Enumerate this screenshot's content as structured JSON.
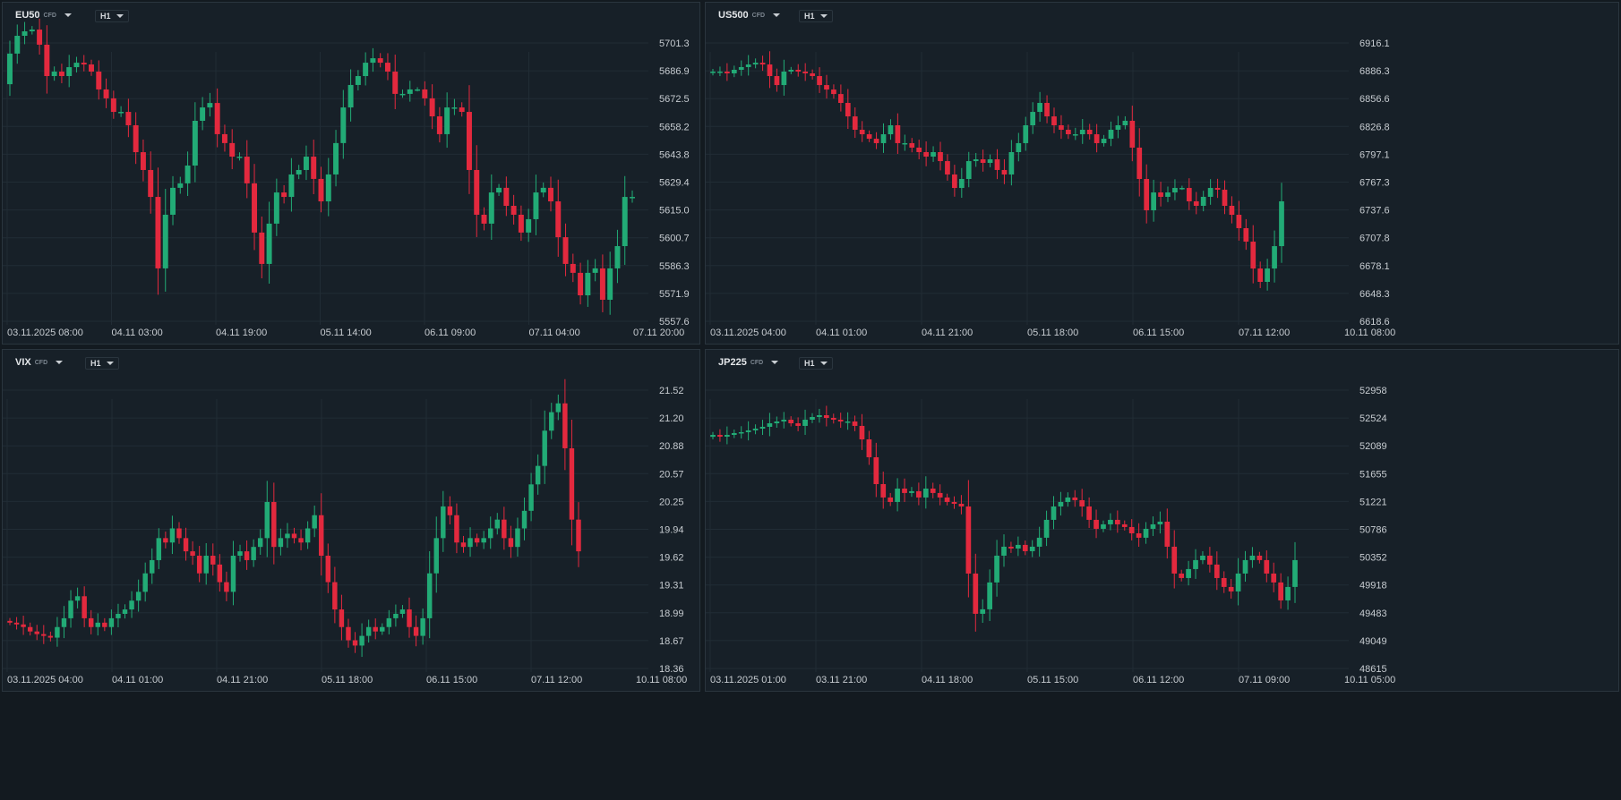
{
  "colors": {
    "up": "#22ab76",
    "down": "#e3293e",
    "grid": "#212c35",
    "bg": "#172028"
  },
  "charts": [
    {
      "id": "eu50",
      "symbol": "EU50",
      "instrument_type": "CFD",
      "timeframe": "H1",
      "price_ticks": [
        "5701.3",
        "5686.9",
        "5672.5",
        "5658.2",
        "5643.8",
        "5629.4",
        "5615.0",
        "5600.7",
        "5586.3",
        "5571.9",
        "5557.6"
      ],
      "time_labels": [
        "03.11.2025  08:00",
        "04.11  03:00",
        "04.11  19:00",
        "05.11  14:00",
        "06.11  09:00",
        "07.11  04:00",
        "07.11  20:00"
      ],
      "open": 5680.0,
      "closes": [
        5695.8,
        5705.0,
        5707.3,
        5708.2,
        5700.4,
        5684.2,
        5686.5,
        5684.2,
        5688.8,
        5691.1,
        5690.2,
        5686.5,
        5677.3,
        5672.7,
        5665.7,
        5665.7,
        5658.8,
        5644.9,
        5635.7,
        5621.8,
        5584.9,
        5612.6,
        5626.5,
        5628.8,
        5638.0,
        5661.1,
        5668.0,
        5670.3,
        5654.2,
        5649.6,
        5642.6,
        5642.6,
        5628.8,
        5603.4,
        5587.2,
        5608.0,
        5624.1,
        5621.8,
        5633.4,
        5635.7,
        5642.6,
        5631.1,
        5619.5,
        5633.4,
        5649.6,
        5668.0,
        5679.6,
        5684.2,
        5691.1,
        5693.4,
        5691.1,
        5686.5,
        5675.0,
        5675.0,
        5677.3,
        5677.3,
        5672.7,
        5663.4,
        5654.2,
        5668.0,
        5668.0,
        5665.7,
        5635.7,
        5612.6,
        5608.0,
        5624.1,
        5626.5,
        5617.2,
        5612.6,
        5603.4,
        5610.3,
        5624.1,
        5626.5,
        5619.5,
        5601.0,
        5587.2,
        5582.6,
        5571.0,
        5582.6,
        5584.9,
        5568.7,
        5584.9,
        5596.4,
        5621.8,
        5621.8
      ]
    },
    {
      "id": "us500",
      "symbol": "US500",
      "instrument_type": "CFD",
      "timeframe": "H1",
      "price_ticks": [
        "6916.1",
        "6886.3",
        "6856.6",
        "6826.8",
        "6797.1",
        "6767.3",
        "6737.6",
        "6707.8",
        "6678.1",
        "6648.3",
        "6618.6"
      ],
      "time_labels": [
        "03.11.2025  04:00",
        "04.11  01:00",
        "04.11  21:00",
        "05.11  18:00",
        "06.11  15:00",
        "07.11  12:00",
        "10.11  08:00"
      ],
      "open": 6884.0,
      "closes": [
        6885.5,
        6885.5,
        6883.6,
        6887.4,
        6890.3,
        6893.1,
        6895.0,
        6893.1,
        6880.7,
        6871.1,
        6885.5,
        6887.4,
        6885.5,
        6883.6,
        6880.7,
        6871.1,
        6866.3,
        6861.5,
        6852.0,
        6837.6,
        6823.3,
        6818.5,
        6813.7,
        6809.0,
        6818.5,
        6828.1,
        6809.0,
        6809.0,
        6804.2,
        6799.4,
        6794.6,
        6799.4,
        6789.8,
        6775.5,
        6761.1,
        6770.7,
        6789.8,
        6791.7,
        6787.9,
        6791.7,
        6780.3,
        6775.5,
        6799.4,
        6809.0,
        6828.1,
        6842.4,
        6852.0,
        6837.6,
        6828.1,
        6823.3,
        6818.5,
        6818.5,
        6823.3,
        6818.5,
        6809.0,
        6813.7,
        6823.3,
        6828.1,
        6832.9,
        6804.2,
        6770.7,
        6737.2,
        6756.3,
        6751.6,
        6756.3,
        6761.1,
        6761.1,
        6746.8,
        6742.0,
        6751.6,
        6761.1,
        6759.2,
        6742.0,
        6732.4,
        6718.1,
        6703.7,
        6675.0,
        6660.7,
        6675.0,
        6698.9,
        6746.8
      ]
    },
    {
      "id": "vix",
      "symbol": "VIX",
      "instrument_type": "CFD",
      "timeframe": "H1",
      "price_ticks": [
        "21.52",
        "21.20",
        "20.88",
        "20.57",
        "20.25",
        "19.94",
        "19.62",
        "19.31",
        "18.99",
        "18.67",
        "18.36"
      ],
      "time_labels": [
        "03.11.2025  04:00",
        "04.11  01:00",
        "04.11  21:00",
        "05.11  18:00",
        "06.11  15:00",
        "07.11  12:00",
        "10.11  08:00"
      ],
      "open": 18.9,
      "closes": [
        18.88,
        18.86,
        18.83,
        18.78,
        18.75,
        18.73,
        18.71,
        18.83,
        18.93,
        19.13,
        19.18,
        18.93,
        18.83,
        18.88,
        18.83,
        18.93,
        18.98,
        19.03,
        19.13,
        19.23,
        19.44,
        19.59,
        19.84,
        19.79,
        19.95,
        19.84,
        19.69,
        19.64,
        19.44,
        19.64,
        19.54,
        19.34,
        19.23,
        19.64,
        19.69,
        19.59,
        19.74,
        19.84,
        20.25,
        19.74,
        19.84,
        19.89,
        19.84,
        19.79,
        19.95,
        20.1,
        19.64,
        19.34,
        19.03,
        18.83,
        18.68,
        18.62,
        18.73,
        18.83,
        18.78,
        18.83,
        18.93,
        18.98,
        19.03,
        18.83,
        18.73,
        18.93,
        19.44,
        19.84,
        20.2,
        20.1,
        19.79,
        19.74,
        19.84,
        19.79,
        19.84,
        19.95,
        20.05,
        19.84,
        19.74,
        19.95,
        20.15,
        20.45,
        20.66,
        21.06,
        21.27,
        21.37,
        20.86,
        20.05,
        19.69
      ]
    },
    {
      "id": "jp225",
      "symbol": "JP225",
      "instrument_type": "CFD",
      "timeframe": "H1",
      "price_ticks": [
        "52958",
        "52524",
        "52089",
        "51655",
        "51221",
        "50786",
        "50352",
        "49918",
        "49483",
        "49049",
        "48615"
      ],
      "time_labels": [
        "03.11.2025  01:00",
        "03.11  21:00",
        "04.11  18:00",
        "05.11  15:00",
        "06.11  12:00",
        "07.11  09:00",
        "10.11  05:00"
      ],
      "open": 52230,
      "closes": [
        52260,
        52232,
        52260,
        52288,
        52302,
        52330,
        52358,
        52386,
        52441,
        52469,
        52497,
        52441,
        52400,
        52497,
        52539,
        52567,
        52525,
        52497,
        52469,
        52469,
        52400,
        52190,
        51911,
        51492,
        51283,
        51213,
        51422,
        51353,
        51381,
        51283,
        51422,
        51353,
        51283,
        51213,
        51185,
        51143,
        50096,
        49468,
        49538,
        49957,
        50375,
        50515,
        50487,
        50543,
        50445,
        50515,
        50655,
        50934,
        51143,
        51213,
        51283,
        51241,
        51143,
        50934,
        50794,
        50864,
        50934,
        50864,
        50822,
        50724,
        50655,
        50794,
        50864,
        50906,
        50515,
        50096,
        50026,
        50166,
        50306,
        50375,
        50236,
        50026,
        49887,
        49817,
        50096,
        50306,
        50375,
        50306,
        50096,
        49957,
        49677,
        49887,
        50306
      ]
    }
  ]
}
